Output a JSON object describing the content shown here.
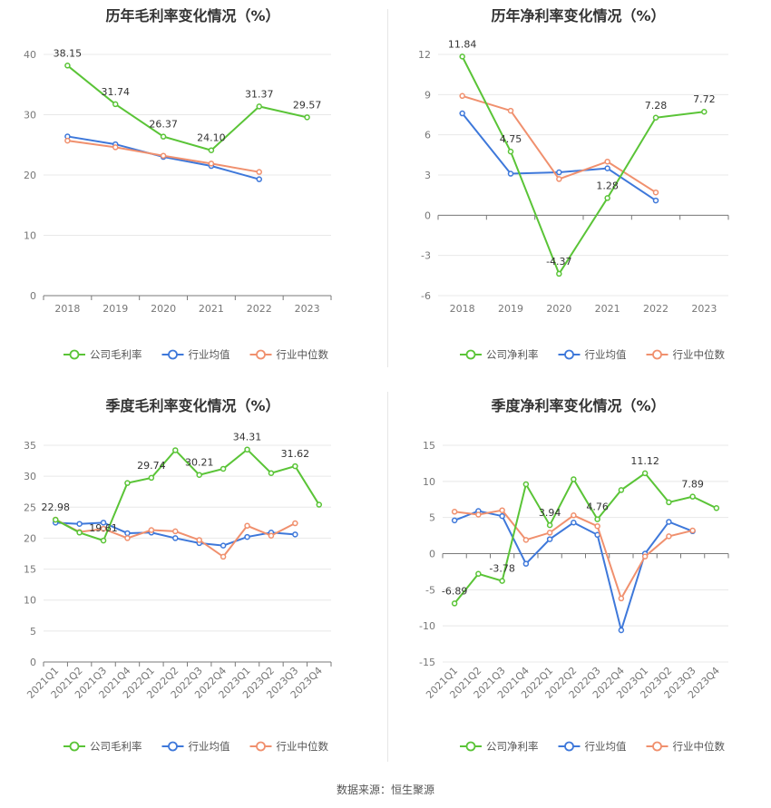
{
  "source": "数据来源：恒生聚源",
  "colors": {
    "company": "#5ac437",
    "avg": "#3e78da",
    "median": "#f0906e"
  },
  "chart_data": [
    {
      "type": "line",
      "title": "历年毛利率变化情况（%）",
      "categories": [
        "2018",
        "2019",
        "2020",
        "2021",
        "2022",
        "2023"
      ],
      "ylim": [
        0,
        40
      ],
      "yticks": [
        0,
        10,
        20,
        30,
        40
      ],
      "legend_position": "bottom",
      "series": [
        {
          "name": "公司毛利率",
          "key": "company",
          "values": [
            38.15,
            31.74,
            26.37,
            24.1,
            31.37,
            29.57
          ],
          "labels": [
            "38.15",
            "31.74",
            "26.37",
            "24.10",
            "31.37",
            "29.57"
          ]
        },
        {
          "name": "行业均值",
          "key": "avg",
          "values": [
            26.4,
            25.1,
            23.0,
            21.5,
            19.3,
            null
          ]
        },
        {
          "name": "行业中位数",
          "key": "median",
          "values": [
            25.7,
            24.6,
            23.2,
            21.9,
            20.5,
            null
          ]
        }
      ]
    },
    {
      "type": "line",
      "title": "历年净利率变化情况（%）",
      "categories": [
        "2018",
        "2019",
        "2020",
        "2021",
        "2022",
        "2023"
      ],
      "ylim": [
        -6,
        12
      ],
      "yticks": [
        -6,
        -3,
        0,
        3,
        6,
        9,
        12
      ],
      "legend_position": "bottom",
      "series": [
        {
          "name": "公司净利率",
          "key": "company",
          "values": [
            11.84,
            4.75,
            -4.37,
            1.28,
            7.28,
            7.72
          ],
          "labels": [
            "11.84",
            "4.75",
            "-4.37",
            "1.28",
            "7.28",
            "7.72"
          ]
        },
        {
          "name": "行业均值",
          "key": "avg",
          "values": [
            7.6,
            3.1,
            3.2,
            3.5,
            1.1,
            null
          ]
        },
        {
          "name": "行业中位数",
          "key": "median",
          "values": [
            8.9,
            7.8,
            2.7,
            4.0,
            1.7,
            null
          ]
        }
      ]
    },
    {
      "type": "line",
      "title": "季度毛利率变化情况（%）",
      "categories": [
        "2021Q1",
        "2021Q2",
        "2021Q3",
        "2021Q4",
        "2022Q1",
        "2022Q2",
        "2022Q3",
        "2022Q4",
        "2023Q1",
        "2023Q2",
        "2023Q3",
        "2023Q4"
      ],
      "ylim": [
        0,
        35
      ],
      "yticks": [
        0,
        5,
        10,
        15,
        20,
        25,
        30,
        35
      ],
      "rotate_x": true,
      "legend_position": "bottom",
      "series": [
        {
          "name": "公司毛利率",
          "key": "company",
          "values": [
            22.98,
            20.9,
            19.61,
            28.9,
            29.74,
            34.2,
            30.21,
            31.2,
            34.31,
            30.5,
            31.62,
            25.4
          ],
          "labels": [
            "22.98",
            null,
            "19.61",
            null,
            "29.74",
            null,
            "30.21",
            null,
            "34.31",
            null,
            "31.62",
            null
          ]
        },
        {
          "name": "行业均值",
          "key": "avg",
          "values": [
            22.5,
            22.3,
            22.5,
            20.8,
            20.9,
            20.0,
            19.2,
            18.8,
            20.2,
            20.9,
            20.6,
            null
          ]
        },
        {
          "name": "行业中位数",
          "key": "median",
          "values": [
            23.0,
            21.0,
            21.5,
            20.0,
            21.3,
            21.1,
            19.7,
            17.0,
            22.0,
            20.4,
            22.4,
            null
          ]
        }
      ]
    },
    {
      "type": "line",
      "title": "季度净利率变化情况（%）",
      "categories": [
        "2021Q1",
        "2021Q2",
        "2021Q3",
        "2021Q4",
        "2022Q1",
        "2022Q2",
        "2022Q3",
        "2022Q4",
        "2023Q1",
        "2023Q2",
        "2023Q3",
        "2023Q4"
      ],
      "ylim": [
        -15,
        15
      ],
      "yticks": [
        -15,
        -10,
        -5,
        0,
        5,
        10,
        15
      ],
      "rotate_x": true,
      "legend_position": "bottom",
      "series": [
        {
          "name": "公司净利率",
          "key": "company",
          "values": [
            -6.89,
            -2.8,
            -3.78,
            9.6,
            3.94,
            10.3,
            4.76,
            8.8,
            11.12,
            7.1,
            7.89,
            6.3
          ],
          "labels": [
            "-6.89",
            null,
            "-3.78",
            null,
            "3.94",
            null,
            "4.76",
            null,
            "11.12",
            null,
            "7.89",
            null
          ]
        },
        {
          "name": "行业均值",
          "key": "avg",
          "values": [
            4.6,
            5.9,
            5.2,
            -1.4,
            2.0,
            4.3,
            2.6,
            -10.6,
            0.0,
            4.4,
            3.1,
            null
          ]
        },
        {
          "name": "行业中位数",
          "key": "median",
          "values": [
            5.8,
            5.4,
            6.0,
            1.9,
            2.9,
            5.3,
            3.8,
            -6.2,
            -0.4,
            2.4,
            3.2,
            null
          ]
        }
      ]
    }
  ]
}
